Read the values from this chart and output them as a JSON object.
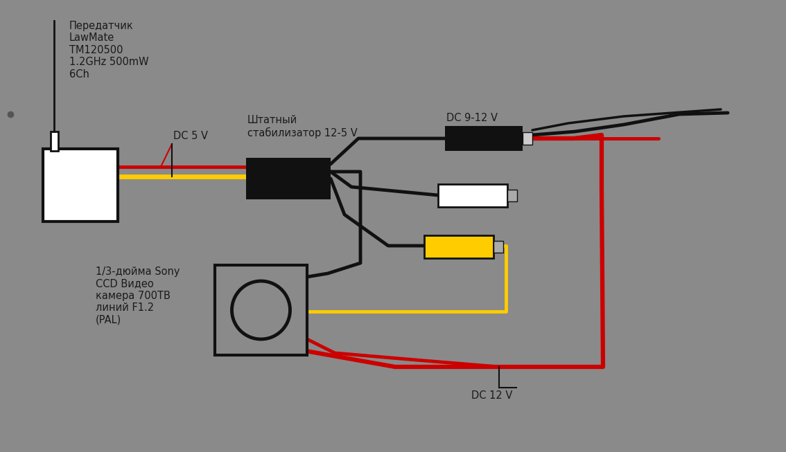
{
  "bg_color": "#8a8a8a",
  "text_color": "#1a1a1a",
  "transmitter_label": "Передатчик\nLawMate\nTM120500\n1.2GHz 500mW\n6Ch",
  "stabilizer_label": "Штатный\nстабилизатор 12-5 V",
  "dc5v_label": "DC 5 V",
  "dc912v_label": "DC 9-12 V",
  "dc12v_label": "DC 12 V",
  "camera_label": "1/3-дюйма Sony\nCCD Видео\nкамера 700ТВ\nлиний F1.2\n(PAL)",
  "lw": 3.5,
  "black": "#111111",
  "red": "#cc0000",
  "yellow": "#ffcc00",
  "white": "#ffffff",
  "gray_bg": "#8a8a8a"
}
